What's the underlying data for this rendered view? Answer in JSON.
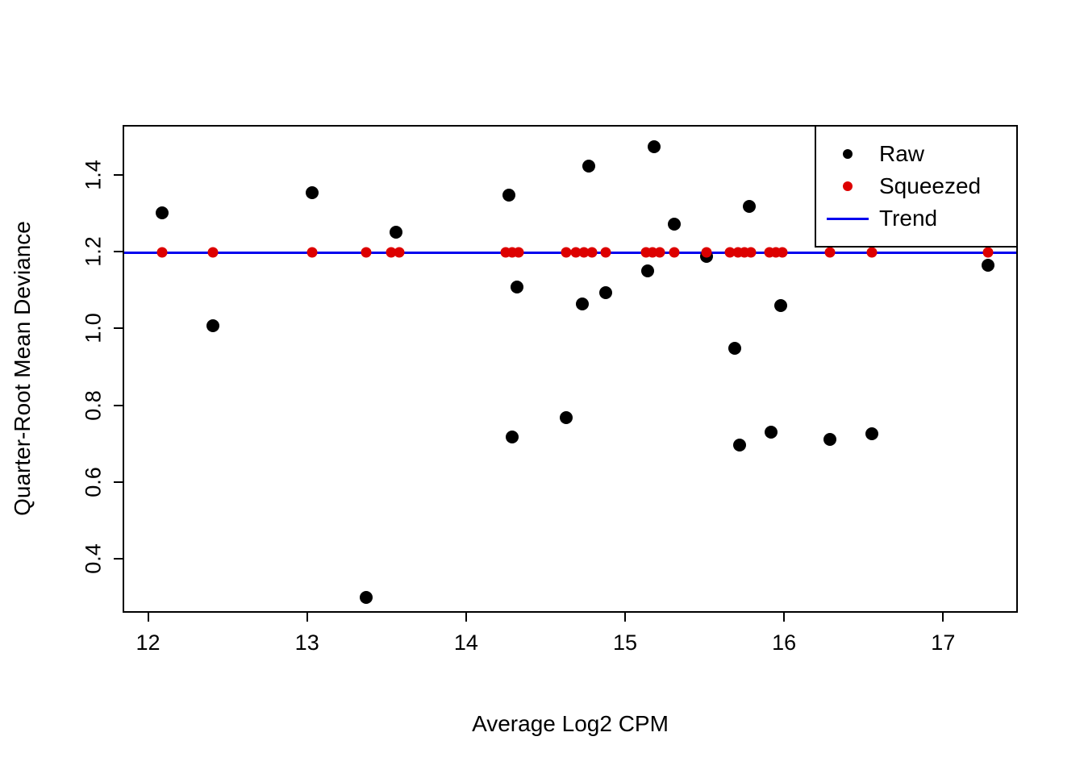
{
  "figure": {
    "x_axis_label": "Average Log2 CPM",
    "y_axis_label": "Quarter-Root Mean Deviance"
  },
  "legend": {
    "raw_label": "Raw",
    "squeezed_label": "Squeezed",
    "trend_label": "Trend"
  },
  "chart_data": {
    "type": "scatter",
    "title": "",
    "xlabel": "Average Log2 CPM",
    "ylabel": "Quarter-Root Mean Deviance",
    "xlim": [
      11.84,
      17.47
    ],
    "ylim": [
      0.26,
      1.53
    ],
    "x_ticks": [
      12,
      13,
      14,
      15,
      16,
      17
    ],
    "x_tick_labels": [
      "12",
      "13",
      "14",
      "15",
      "16",
      "17"
    ],
    "y_ticks": [
      0.4,
      0.6,
      0.8,
      1.0,
      1.2,
      1.4
    ],
    "y_tick_labels": [
      "0.4",
      "0.6",
      "0.8",
      "1.0",
      "1.2",
      "1.4"
    ],
    "grid": false,
    "legend_position": "top-right",
    "colors": {
      "raw": "#000000",
      "squeezed": "#dd0000",
      "trend": "#0000ee"
    },
    "series": [
      {
        "name": "Trend",
        "type": "hline",
        "color_key": "trend",
        "y": 1.203
      },
      {
        "name": "Raw",
        "type": "points",
        "color_key": "raw",
        "points": [
          [
            12.08,
            1.305
          ],
          [
            12.4,
            1.012
          ],
          [
            13.02,
            1.358
          ],
          [
            13.36,
            0.305
          ],
          [
            13.55,
            1.255
          ],
          [
            14.26,
            1.352
          ],
          [
            14.28,
            0.722
          ],
          [
            14.31,
            1.112
          ],
          [
            14.62,
            0.773
          ],
          [
            14.72,
            1.068
          ],
          [
            14.76,
            1.428
          ],
          [
            14.87,
            1.098
          ],
          [
            15.13,
            1.155
          ],
          [
            15.17,
            1.478
          ],
          [
            15.3,
            1.277
          ],
          [
            15.5,
            1.192
          ],
          [
            15.68,
            0.953
          ],
          [
            15.71,
            0.7
          ],
          [
            15.77,
            1.322
          ],
          [
            15.91,
            0.735
          ],
          [
            15.97,
            1.065
          ],
          [
            16.28,
            0.715
          ],
          [
            16.54,
            0.73
          ],
          [
            17.27,
            1.168
          ]
        ]
      },
      {
        "name": "Squeezed",
        "type": "points",
        "color_key": "squeezed",
        "points": [
          [
            12.08,
            1.203
          ],
          [
            12.4,
            1.203
          ],
          [
            13.02,
            1.203
          ],
          [
            13.36,
            1.203
          ],
          [
            13.52,
            1.203
          ],
          [
            13.57,
            1.203
          ],
          [
            14.24,
            1.203
          ],
          [
            14.28,
            1.203
          ],
          [
            14.32,
            1.203
          ],
          [
            14.62,
            1.203
          ],
          [
            14.68,
            1.203
          ],
          [
            14.73,
            1.203
          ],
          [
            14.78,
            1.203
          ],
          [
            14.87,
            1.203
          ],
          [
            15.12,
            1.203
          ],
          [
            15.16,
            1.203
          ],
          [
            15.21,
            1.203
          ],
          [
            15.3,
            1.203
          ],
          [
            15.5,
            1.203
          ],
          [
            15.65,
            1.203
          ],
          [
            15.7,
            1.203
          ],
          [
            15.74,
            1.203
          ],
          [
            15.78,
            1.203
          ],
          [
            15.9,
            1.203
          ],
          [
            15.94,
            1.203
          ],
          [
            15.98,
            1.203
          ],
          [
            16.28,
            1.203
          ],
          [
            16.54,
            1.203
          ],
          [
            17.27,
            1.203
          ]
        ]
      }
    ]
  }
}
